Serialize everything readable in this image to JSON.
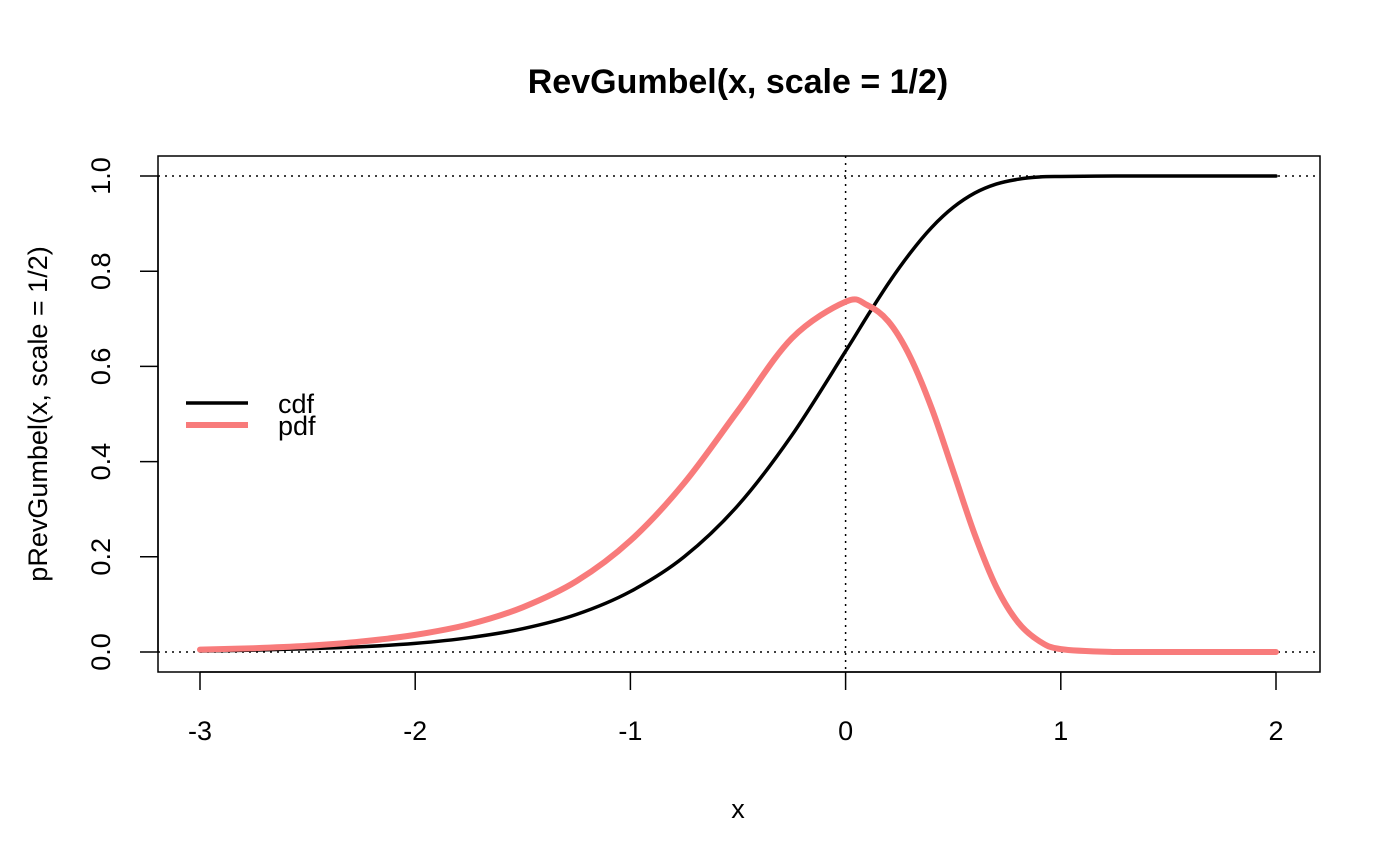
{
  "chart_data": {
    "type": "line",
    "title": "RevGumbel(x, scale = 1/2)",
    "xlabel": "x",
    "ylabel": "pRevGumbel(x, scale = 1/2)",
    "xlim": [
      -3,
      2
    ],
    "ylim": [
      0,
      1
    ],
    "x_ticks": [
      -3,
      -2,
      -1,
      0,
      1,
      2
    ],
    "x_tick_labels": [
      "-3",
      "-2",
      "-1",
      "0",
      "1",
      "2"
    ],
    "y_ticks": [
      0,
      0.2,
      0.4,
      0.6,
      0.8,
      1.0
    ],
    "y_tick_labels": [
      "0.0",
      "0.2",
      "0.4",
      "0.6",
      "0.8",
      "1.0"
    ],
    "reference_lines": {
      "horizontal": [
        0,
        1
      ],
      "vertical": [
        0
      ],
      "style": "dotted"
    },
    "legend": {
      "position": "left",
      "entries": [
        "cdf",
        "pdf"
      ]
    },
    "x": [
      -3.0,
      -2.75,
      -2.5,
      -2.25,
      -2.0,
      -1.75,
      -1.5,
      -1.25,
      -1.0,
      -0.75,
      -0.5,
      -0.25,
      0.0,
      0.1,
      0.2,
      0.3,
      0.4,
      0.5,
      0.6,
      0.7,
      0.8,
      0.9,
      1.0,
      1.25,
      1.5,
      1.75,
      2.0
    ],
    "series": [
      {
        "name": "cdf",
        "color": "#000000",
        "values": [
          0.002,
          0.004,
          0.007,
          0.011,
          0.018,
          0.03,
          0.049,
          0.079,
          0.127,
          0.2,
          0.308,
          0.455,
          0.632,
          0.705,
          0.775,
          0.838,
          0.892,
          0.934,
          0.964,
          0.983,
          0.993,
          0.998,
          0.999,
          1.0,
          1.0,
          1.0,
          1.0
        ]
      },
      {
        "name": "pdf",
        "color": "#F87B7B",
        "values": [
          0.005,
          0.008,
          0.013,
          0.022,
          0.036,
          0.058,
          0.094,
          0.149,
          0.234,
          0.355,
          0.507,
          0.659,
          0.736,
          0.729,
          0.694,
          0.62,
          0.512,
          0.38,
          0.247,
          0.137,
          0.063,
          0.023,
          0.006,
          0.0,
          0.0,
          0.0,
          0.0
        ]
      }
    ]
  }
}
